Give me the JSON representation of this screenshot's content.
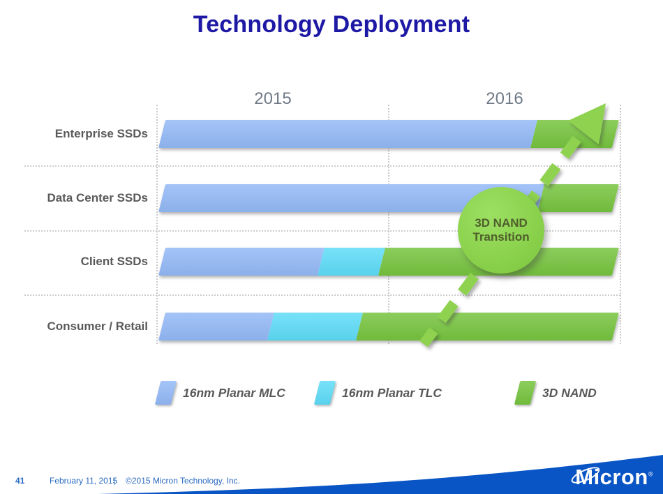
{
  "title": "Technology Deployment",
  "chart_data": {
    "type": "bar",
    "subtype": "horizontal-stacked-timeline",
    "title": "Technology Deployment",
    "x_axis": {
      "tick_labels": [
        "2015",
        "2016"
      ],
      "span": "calendar years 2015 through 2016",
      "gridlines": "dotted vertical at year boundaries"
    },
    "categories": [
      "Enterprise SSDs",
      "Data Center SSDs",
      "Client SSDs",
      "Consumer / Retail"
    ],
    "legend": [
      {
        "name": "16nm Planar MLC",
        "color": "#93b9f7"
      },
      {
        "name": "16nm Planar TLC",
        "color": "#5edcf8"
      },
      {
        "name": "3D NAND",
        "color": "#76c43e"
      }
    ],
    "legend_position": "bottom",
    "rows": [
      {
        "label": "Enterprise SSDs",
        "segments": [
          {
            "tech": "16nm Planar MLC",
            "width_pct": 82,
            "approx_period": "2015.0 - 2016.6"
          },
          {
            "tech": "3D NAND",
            "width_pct": 18,
            "approx_period": "2016.6 - 2017.0"
          }
        ]
      },
      {
        "label": "Data Center SSDs",
        "segments": [
          {
            "tech": "16nm Planar MLC",
            "width_pct": 83.5,
            "approx_period": "2015.0 - 2016.65"
          },
          {
            "tech": "3D NAND",
            "width_pct": 16.5,
            "approx_period": "2016.65 - 2017.0"
          }
        ]
      },
      {
        "label": "Client SSDs",
        "segments": [
          {
            "tech": "16nm Planar MLC",
            "width_pct": 35,
            "approx_period": "2015.0 - 2015.7"
          },
          {
            "tech": "16nm Planar TLC",
            "width_pct": 13.5,
            "approx_period": "2015.7 - 2015.95"
          },
          {
            "tech": "3D NAND",
            "width_pct": 51.5,
            "approx_period": "2015.95 - 2017.0"
          }
        ]
      },
      {
        "label": "Consumer / Retail",
        "segments": [
          {
            "tech": "16nm Planar MLC",
            "width_pct": 24,
            "approx_period": "2015.0 - 2015.5"
          },
          {
            "tech": "16nm Planar TLC",
            "width_pct": 19.5,
            "approx_period": "2015.5 - 2015.9"
          },
          {
            "tech": "3D NAND",
            "width_pct": 56.5,
            "approx_period": "2015.9 - 2017.0"
          }
        ]
      }
    ],
    "annotation": {
      "line1": "3D NAND",
      "line2": "Transition",
      "shape": "green circle with dashed arrow rising from lower-left to upper-right",
      "circle_color": "#8bd24d",
      "arrow_color": "#8ed24f"
    }
  },
  "footer": {
    "page_number": "41",
    "date": "February 11, 2015",
    "separator": "|",
    "copyright": "©2015 Micron Technology, Inc."
  },
  "logo": {
    "m": "M",
    "rest": "icron",
    "registered": "®",
    "brand_blue": "#0a55c5"
  },
  "colors": {
    "title": "#1e19a5",
    "row_label": "#595959",
    "year_label": "#6f7a87",
    "footer_text": "#2a6ac0"
  }
}
